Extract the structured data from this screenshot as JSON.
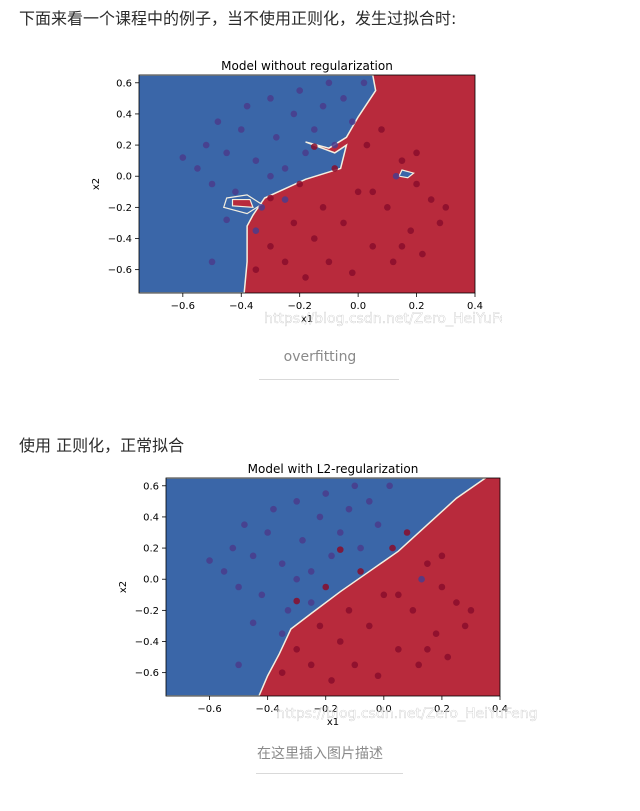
{
  "intro_text": "下面来看一个课程中的例子，当不使用正则化，发生过拟合时:",
  "section2_text": "使用 正则化，正常拟合",
  "figures": [
    {
      "caption": "overfitting",
      "watermark": "https://blog.csdn.net/Zero_HeiYuFeng"
    },
    {
      "caption": "在这里插入图片描述",
      "watermark": "https://blog.csdn.net/Zero_HeiYuFeng"
    }
  ],
  "colors": {
    "blue_region": "#3a66a8",
    "red_region": "#b82a3c",
    "blue_point": "#4a3c8c",
    "red_point": "#8a0d2c"
  },
  "chart_data": [
    {
      "type": "scatter",
      "title": "Model without regularization",
      "xlabel": "x1",
      "ylabel": "x2",
      "xlim": [
        -0.75,
        0.4
      ],
      "ylim": [
        -0.75,
        0.65
      ],
      "xticks": [
        "−0.6",
        "−0.4",
        "−0.2",
        "0.0",
        "0.2",
        "0.4"
      ],
      "yticks": [
        "0.6",
        "0.4",
        "0.2",
        "0.0",
        "−0.2",
        "−0.4",
        "−0.6"
      ],
      "background": "decision regions: blue (upper-left), red (lower-right), overfit irregular boundary",
      "series": [
        {
          "values": [
            [
              -0.6,
              0.12
            ],
            [
              -0.55,
              0.05
            ],
            [
              -0.52,
              0.2
            ],
            [
              -0.5,
              -0.05
            ],
            [
              -0.48,
              0.35
            ],
            [
              -0.45,
              0.15
            ],
            [
              -0.42,
              -0.1
            ],
            [
              -0.4,
              0.3
            ],
            [
              -0.38,
              0.45
            ],
            [
              -0.35,
              0.1
            ],
            [
              -0.33,
              -0.2
            ],
            [
              -0.3,
              0.5
            ],
            [
              -0.28,
              0.25
            ],
            [
              -0.25,
              0.05
            ],
            [
              -0.22,
              0.4
            ],
            [
              -0.2,
              0.55
            ],
            [
              -0.18,
              0.15
            ],
            [
              -0.15,
              0.3
            ],
            [
              -0.12,
              0.45
            ],
            [
              -0.1,
              0.6
            ],
            [
              -0.08,
              0.2
            ],
            [
              -0.05,
              0.5
            ],
            [
              -0.02,
              0.35
            ],
            [
              0.02,
              0.6
            ],
            [
              -0.45,
              -0.28
            ],
            [
              -0.5,
              -0.55
            ],
            [
              -0.35,
              -0.35
            ],
            [
              0.13,
              0.0
            ],
            [
              -0.25,
              -0.15
            ],
            [
              -0.3,
              0.0
            ]
          ]
        },
        {
          "values": [
            [
              -0.35,
              -0.6
            ],
            [
              -0.3,
              -0.45
            ],
            [
              -0.25,
              -0.55
            ],
            [
              -0.22,
              -0.3
            ],
            [
              -0.18,
              -0.65
            ],
            [
              -0.15,
              -0.4
            ],
            [
              -0.12,
              -0.2
            ],
            [
              -0.1,
              -0.55
            ],
            [
              -0.08,
              0.05
            ],
            [
              -0.05,
              -0.3
            ],
            [
              -0.02,
              -0.62
            ],
            [
              0.0,
              -0.1
            ],
            [
              0.03,
              0.2
            ],
            [
              0.05,
              -0.45
            ],
            [
              0.08,
              0.3
            ],
            [
              0.1,
              -0.2
            ],
            [
              0.12,
              -0.55
            ],
            [
              0.15,
              0.1
            ],
            [
              0.18,
              -0.35
            ],
            [
              0.2,
              -0.05
            ],
            [
              0.22,
              -0.5
            ],
            [
              0.25,
              -0.15
            ],
            [
              0.28,
              -0.3
            ],
            [
              -0.15,
              0.19
            ],
            [
              -0.3,
              -0.14
            ],
            [
              0.05,
              -0.1
            ],
            [
              -0.2,
              -0.05
            ],
            [
              0.15,
              -0.45
            ],
            [
              0.2,
              0.15
            ],
            [
              0.3,
              -0.2
            ]
          ]
        }
      ]
    },
    {
      "type": "scatter",
      "title": "Model with L2-regularization",
      "xlabel": "x1",
      "ylabel": "x2",
      "xlim": [
        -0.75,
        0.4
      ],
      "ylim": [
        -0.75,
        0.65
      ],
      "xticks": [
        "−0.6",
        "−0.4",
        "−0.2",
        "0.0",
        "0.2",
        "0.4"
      ],
      "yticks": [
        "0.6",
        "0.4",
        "0.2",
        "0.0",
        "−0.2",
        "−0.4",
        "−0.6"
      ],
      "background": "decision regions: blue (upper-left), red (lower-right), smooth diagonal boundary",
      "series": [
        {
          "values": [
            [
              -0.6,
              0.12
            ],
            [
              -0.55,
              0.05
            ],
            [
              -0.52,
              0.2
            ],
            [
              -0.5,
              -0.05
            ],
            [
              -0.48,
              0.35
            ],
            [
              -0.45,
              0.15
            ],
            [
              -0.42,
              -0.1
            ],
            [
              -0.4,
              0.3
            ],
            [
              -0.38,
              0.45
            ],
            [
              -0.35,
              0.1
            ],
            [
              -0.33,
              -0.2
            ],
            [
              -0.3,
              0.5
            ],
            [
              -0.28,
              0.25
            ],
            [
              -0.25,
              0.05
            ],
            [
              -0.22,
              0.4
            ],
            [
              -0.2,
              0.55
            ],
            [
              -0.18,
              0.15
            ],
            [
              -0.15,
              0.3
            ],
            [
              -0.12,
              0.45
            ],
            [
              -0.1,
              0.6
            ],
            [
              -0.08,
              0.2
            ],
            [
              -0.05,
              0.5
            ],
            [
              -0.02,
              0.35
            ],
            [
              0.02,
              0.6
            ],
            [
              -0.45,
              -0.28
            ],
            [
              -0.5,
              -0.55
            ],
            [
              -0.35,
              -0.35
            ],
            [
              0.13,
              0.0
            ],
            [
              -0.25,
              -0.15
            ],
            [
              -0.3,
              0.0
            ]
          ]
        },
        {
          "values": [
            [
              -0.35,
              -0.6
            ],
            [
              -0.3,
              -0.45
            ],
            [
              -0.25,
              -0.55
            ],
            [
              -0.22,
              -0.3
            ],
            [
              -0.18,
              -0.65
            ],
            [
              -0.15,
              -0.4
            ],
            [
              -0.12,
              -0.2
            ],
            [
              -0.1,
              -0.55
            ],
            [
              -0.08,
              0.05
            ],
            [
              -0.05,
              -0.3
            ],
            [
              -0.02,
              -0.62
            ],
            [
              0.0,
              -0.1
            ],
            [
              0.03,
              0.2
            ],
            [
              0.05,
              -0.45
            ],
            [
              0.08,
              0.3
            ],
            [
              0.1,
              -0.2
            ],
            [
              0.12,
              -0.55
            ],
            [
              0.15,
              0.1
            ],
            [
              0.18,
              -0.35
            ],
            [
              0.2,
              -0.05
            ],
            [
              0.22,
              -0.5
            ],
            [
              0.25,
              -0.15
            ],
            [
              0.28,
              -0.3
            ],
            [
              -0.15,
              0.19
            ],
            [
              -0.3,
              -0.14
            ],
            [
              0.05,
              -0.1
            ],
            [
              -0.2,
              -0.05
            ],
            [
              0.15,
              -0.45
            ],
            [
              0.2,
              0.15
            ],
            [
              0.3,
              -0.2
            ]
          ]
        }
      ]
    }
  ]
}
